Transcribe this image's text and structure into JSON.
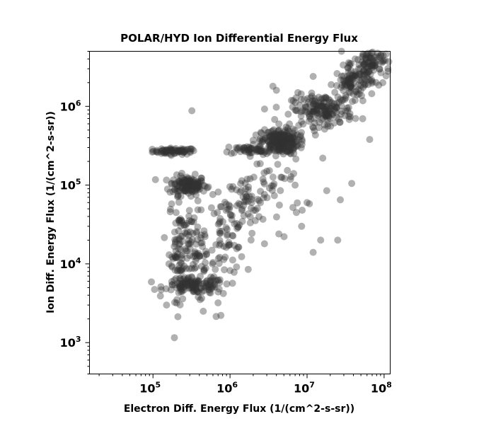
{
  "chart_data": {
    "type": "scatter",
    "title": "POLAR/HYD  Ion Differential Energy Flux",
    "xlabel": "Electron Diff. Energy Flux (1/(cm^2-s-sr))",
    "ylabel": "Ion Diff. Energy Flux (1/(cm^2-s-sr))",
    "x_scale": "log",
    "y_scale": "log",
    "xlim": [
      15000,
      120000000
    ],
    "ylim": [
      400,
      5000000
    ],
    "grid": false,
    "legend": "none",
    "marker_color": "#333333",
    "x_ticks": [
      {
        "value": 100000,
        "base": "10",
        "exp": "5"
      },
      {
        "value": 1000000,
        "base": "10",
        "exp": "6"
      },
      {
        "value": 10000000,
        "base": "10",
        "exp": "7"
      },
      {
        "value": 100000000,
        "base": "10",
        "exp": "8"
      }
    ],
    "y_ticks": [
      {
        "value": 1000,
        "base": "10",
        "exp": "3"
      },
      {
        "value": 10000,
        "base": "10",
        "exp": "4"
      },
      {
        "value": 100000,
        "base": "10",
        "exp": "5"
      },
      {
        "value": 1000000,
        "base": "10",
        "exp": "6"
      }
    ],
    "clusters": [
      {
        "x_log_mean": 5.28,
        "x_log_sd": 0.14,
        "y_log_mean": 5.43,
        "y_log_sd": 0.02,
        "count": 70
      },
      {
        "x_log_mean": 5.45,
        "x_log_sd": 0.12,
        "y_log_mean": 5.0,
        "y_log_sd": 0.06,
        "count": 130
      },
      {
        "x_log_mean": 5.35,
        "x_log_sd": 0.07,
        "y_log_mean": 4.25,
        "y_log_sd": 0.35,
        "count": 90
      },
      {
        "x_log_mean": 5.55,
        "x_log_sd": 0.12,
        "y_log_mean": 4.1,
        "y_log_sd": 0.3,
        "count": 80
      },
      {
        "x_log_mean": 5.55,
        "x_log_sd": 0.2,
        "y_log_mean": 3.72,
        "y_log_sd": 0.05,
        "count": 120
      },
      {
        "x_log_mean": 5.95,
        "x_log_sd": 0.12,
        "y_log_mean": 4.35,
        "y_log_sd": 0.25,
        "count": 70
      },
      {
        "x_log_mean": 6.2,
        "x_log_sd": 0.12,
        "y_log_mean": 4.75,
        "y_log_sd": 0.2,
        "count": 50
      },
      {
        "x_log_mean": 6.3,
        "x_log_sd": 0.2,
        "y_log_mean": 5.45,
        "y_log_sd": 0.03,
        "count": 50
      },
      {
        "x_log_mean": 6.65,
        "x_log_sd": 0.12,
        "y_log_mean": 5.55,
        "y_log_sd": 0.08,
        "count": 230
      },
      {
        "x_log_mean": 6.6,
        "x_log_sd": 0.2,
        "y_log_mean": 5.0,
        "y_log_sd": 0.25,
        "count": 40
      },
      {
        "x_log_mean": 7.2,
        "x_log_sd": 0.2,
        "y_log_mean": 5.95,
        "y_log_sd": 0.1,
        "count": 170
      },
      {
        "x_log_mean": 7.6,
        "x_log_sd": 0.12,
        "y_log_mean": 6.3,
        "y_log_sd": 0.1,
        "count": 100
      },
      {
        "x_log_mean": 7.85,
        "x_log_sd": 0.12,
        "y_log_mean": 6.55,
        "y_log_sd": 0.1,
        "count": 90
      }
    ],
    "outliers": [
      {
        "x": 320000,
        "y": 880000
      },
      {
        "x": 28000000,
        "y": 5000000
      },
      {
        "x": 90000000,
        "y": 5200000
      },
      {
        "x": 65000000,
        "y": 380000
      },
      {
        "x": 12000000,
        "y": 2400000
      },
      {
        "x": 3600000,
        "y": 1800000
      },
      {
        "x": 4000000,
        "y": 1600000
      },
      {
        "x": 3800000,
        "y": 680000
      },
      {
        "x": 18000000,
        "y": 85000
      },
      {
        "x": 25000000,
        "y": 20000
      },
      {
        "x": 12000000,
        "y": 14000
      },
      {
        "x": 8500000,
        "y": 30000
      },
      {
        "x": 27000000,
        "y": 65000
      },
      {
        "x": 38000000,
        "y": 105000
      },
      {
        "x": 2800000,
        "y": 18000
      },
      {
        "x": 4300000,
        "y": 24000
      },
      {
        "x": 15000000,
        "y": 20000
      },
      {
        "x": 820000,
        "y": 4200
      },
      {
        "x": 450000,
        "y": 2500
      },
      {
        "x": 150000,
        "y": 3000
      },
      {
        "x": 700000,
        "y": 3200
      },
      {
        "x": 1500000,
        "y": 300000
      },
      {
        "x": 2000000,
        "y": 330000
      },
      {
        "x": 7000000,
        "y": 100000
      },
      {
        "x": 10000000,
        "y": 60000
      },
      {
        "x": 16000000,
        "y": 220000
      }
    ]
  }
}
